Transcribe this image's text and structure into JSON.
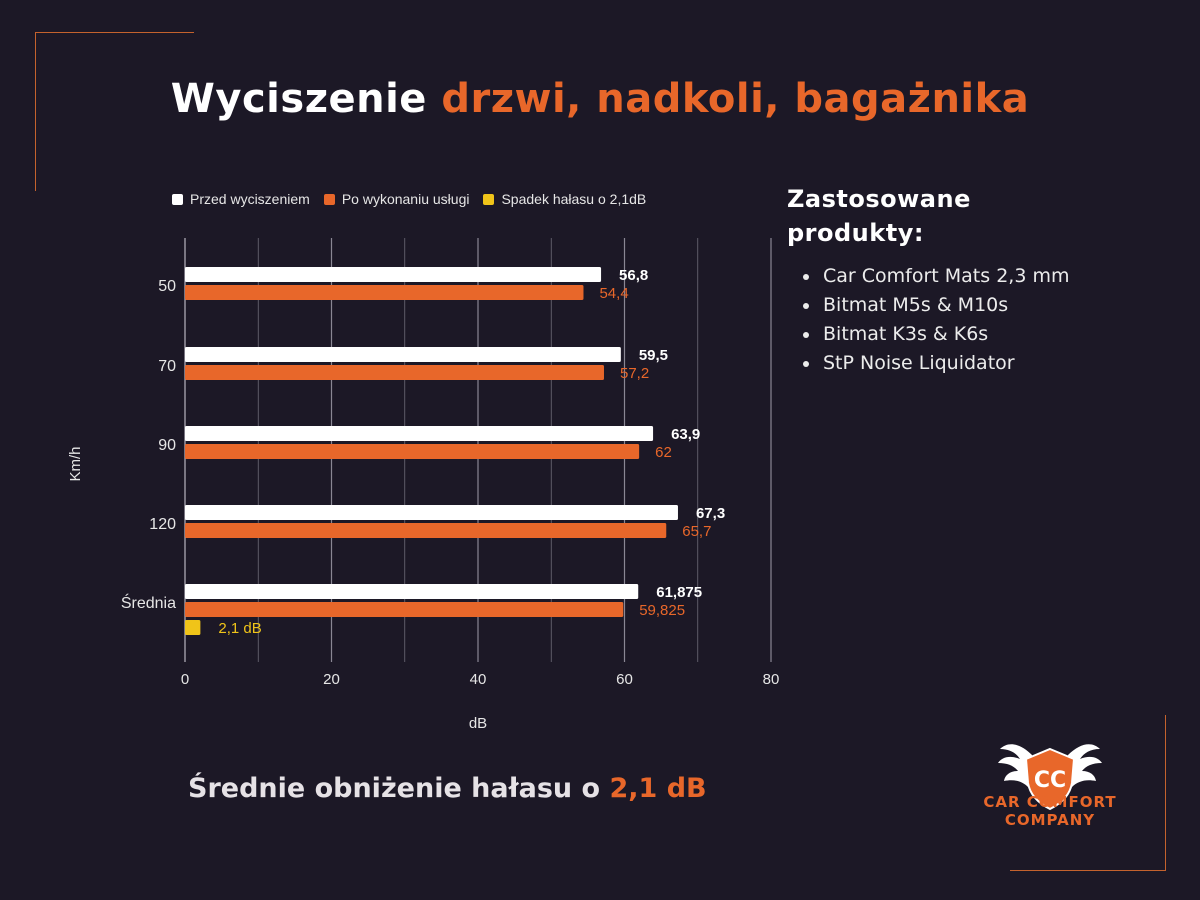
{
  "title": {
    "part1": "Wyciszenie ",
    "part2": "drzwi, nadkoli, bagażnika"
  },
  "colors": {
    "background": "#1c1826",
    "accent": "#e8672a",
    "before": "#ffffff",
    "after": "#e8672a",
    "drop": "#f0c419"
  },
  "legend": [
    {
      "label": "Przed wyciszeniem",
      "color": "#ffffff"
    },
    {
      "label": "Po wykonaniu usługi",
      "color": "#e8672a"
    },
    {
      "label": "Spadek hałasu o 2,1dB",
      "color": "#f0c419"
    }
  ],
  "chart_data": {
    "type": "bar",
    "orientation": "horizontal",
    "categories": [
      "50",
      "70",
      "90",
      "120",
      "Średnia"
    ],
    "series": [
      {
        "name": "Przed wyciszeniem",
        "values": [
          56.8,
          59.5,
          63.9,
          67.3,
          61.875
        ],
        "labels": [
          "56,8",
          "59,5",
          "63,9",
          "67,3",
          "61,875"
        ]
      },
      {
        "name": "Po wykonaniu usługi",
        "values": [
          54.4,
          57.2,
          62,
          65.7,
          59.825
        ],
        "labels": [
          "54,4",
          "57,2",
          "62",
          "65,7",
          "59,825"
        ]
      },
      {
        "name": "Spadek hałasu o 2,1dB",
        "values": [
          null,
          null,
          null,
          null,
          2.1
        ],
        "labels": [
          "",
          "",
          "",
          "",
          "2,1 dB"
        ]
      }
    ],
    "xlim": [
      0,
      80
    ],
    "xticks": [
      0,
      20,
      40,
      60,
      80
    ],
    "xlabel": "dB",
    "ylabel": "Km/h",
    "grid": true,
    "legend_position": "top"
  },
  "side": {
    "title_line1": "Zastosowane",
    "title_line2": "produkty:",
    "products": [
      "Car Comfort Mats 2,3 mm",
      "Bitmat M5s & M10s",
      "Bitmat K3s & K6s",
      "StP Noise Liquidator"
    ]
  },
  "summary": {
    "part1": "Średnie obniżenie hałasu o ",
    "part2": "2,1 dB"
  },
  "logo": {
    "monogram": "CC",
    "line1": "CAR COMFORT",
    "line2": "COMPANY"
  }
}
